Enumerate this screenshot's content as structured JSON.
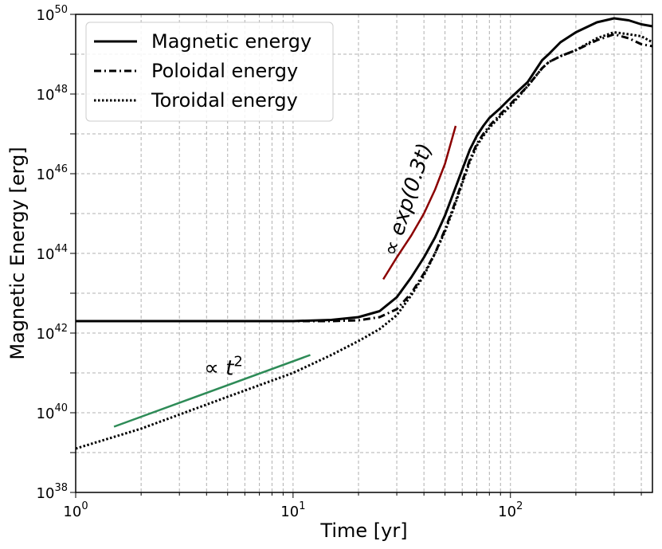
{
  "chart_data": {
    "type": "line",
    "title": "",
    "xlabel": "Time [yr]",
    "ylabel": "Magnetic Energy [erg]",
    "x_scale": "log",
    "y_scale": "log",
    "xlim": [
      1,
      450
    ],
    "ylim": [
      1e+38,
      1e+50
    ],
    "grid": true,
    "legend_position": "top-left",
    "x_ticks": [
      {
        "value": 1,
        "base": "10",
        "exp": "0"
      },
      {
        "value": 10,
        "base": "10",
        "exp": "1"
      },
      {
        "value": 100,
        "base": "10",
        "exp": "2"
      }
    ],
    "y_ticks": [
      {
        "value": 1e+38,
        "base": "10",
        "exp": "38"
      },
      {
        "value": 1e+40,
        "base": "10",
        "exp": "40"
      },
      {
        "value": 1e+42,
        "base": "10",
        "exp": "42"
      },
      {
        "value": 1e+44,
        "base": "10",
        "exp": "44"
      },
      {
        "value": 1e+46,
        "base": "10",
        "exp": "46"
      },
      {
        "value": 1e+48,
        "base": "10",
        "exp": "48"
      },
      {
        "value": 1e+50,
        "base": "10",
        "exp": "50"
      }
    ],
    "series": [
      {
        "name": "Magnetic energy",
        "style": "solid",
        "color": "#000000",
        "x": [
          1,
          2,
          5,
          10,
          15,
          20,
          25,
          30,
          35,
          40,
          45,
          50,
          55,
          60,
          65,
          70,
          75,
          80,
          90,
          100,
          120,
          140,
          150,
          170,
          200,
          250,
          300,
          350,
          400,
          450
        ],
        "log10_y": [
          42.3,
          42.3,
          42.3,
          42.3,
          42.33,
          42.4,
          42.55,
          42.9,
          43.4,
          43.9,
          44.4,
          44.95,
          45.55,
          46.1,
          46.6,
          46.95,
          47.2,
          47.4,
          47.65,
          47.9,
          48.3,
          48.85,
          49.0,
          49.3,
          49.55,
          49.8,
          49.9,
          49.85,
          49.75,
          49.7
        ]
      },
      {
        "name": "Poloidal energy",
        "style": "dashdot",
        "color": "#000000",
        "x": [
          1,
          2,
          5,
          10,
          15,
          20,
          25,
          30,
          35,
          40,
          45,
          50,
          55,
          60,
          65,
          70,
          75,
          80,
          90,
          100,
          120,
          140,
          150,
          170,
          200,
          250,
          300,
          350,
          400,
          450
        ],
        "log10_y": [
          42.3,
          42.3,
          42.3,
          42.3,
          42.3,
          42.32,
          42.4,
          42.6,
          43.0,
          43.5,
          44.0,
          44.6,
          45.2,
          45.8,
          46.35,
          46.75,
          47.0,
          47.2,
          47.5,
          47.75,
          48.2,
          48.65,
          48.8,
          48.95,
          49.1,
          49.35,
          49.5,
          49.4,
          49.25,
          49.2
        ]
      },
      {
        "name": "Toroidal energy",
        "style": "dotted",
        "color": "#000000",
        "x": [
          1,
          2,
          5,
          10,
          15,
          20,
          25,
          30,
          35,
          40,
          45,
          50,
          55,
          60,
          65,
          70,
          75,
          80,
          90,
          100,
          120,
          140,
          150,
          170,
          200,
          250,
          300,
          350,
          400,
          450
        ],
        "log10_y": [
          39.1,
          39.6,
          40.4,
          41.0,
          41.45,
          41.8,
          42.1,
          42.45,
          42.95,
          43.45,
          44.0,
          44.55,
          45.15,
          45.75,
          46.3,
          46.7,
          46.95,
          47.15,
          47.45,
          47.7,
          48.2,
          48.65,
          48.8,
          48.95,
          49.1,
          49.4,
          49.55,
          49.5,
          49.45,
          49.3
        ]
      },
      {
        "name": "",
        "style": "solid",
        "color": "#2e8b57",
        "x": [
          1.5,
          12
        ],
        "log10_y": [
          39.65,
          41.45
        ]
      },
      {
        "name": "",
        "style": "solid",
        "color": "#8b0000",
        "x": [
          26,
          30,
          35,
          40,
          45,
          50,
          56
        ],
        "log10_y": [
          43.35,
          43.9,
          44.45,
          45.0,
          45.6,
          46.25,
          47.2
        ]
      }
    ],
    "annotations": [
      {
        "text_pre": "∝ ",
        "text_math": "t",
        "sup": "2",
        "x": 3.9,
        "log10_y": 40.95,
        "rotation": 0
      },
      {
        "text": "∝ exp(0.3t)",
        "x": 36,
        "log10_y": 45.3,
        "rotation": -72
      }
    ]
  }
}
